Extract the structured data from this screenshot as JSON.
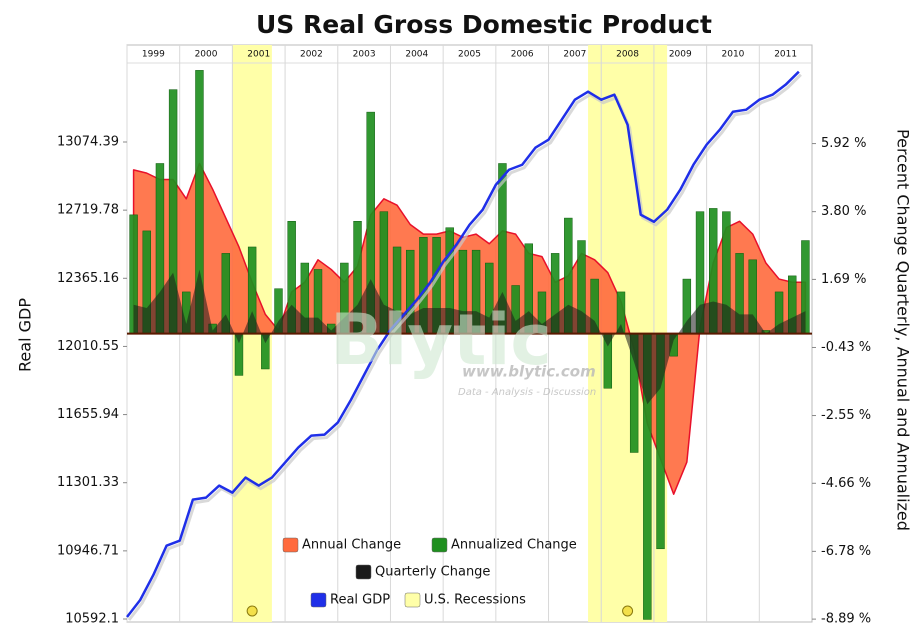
{
  "chart_data": {
    "type": "combo",
    "title": "US Real Gross Domestic Product",
    "y_label": "Real GDP",
    "y2_label": "Percent Change Quarterly, Annual and Annualized",
    "watermark": {
      "logo": "Blytic",
      "url": "www.blytic.com",
      "tagline": "Data - Analysis - Discussion"
    },
    "xlim": [
      1999,
      2012
    ],
    "xticks": [
      1999,
      2000,
      2001,
      2002,
      2003,
      2004,
      2005,
      2006,
      2007,
      2008,
      2009,
      2010,
      2011
    ],
    "x_grid": true,
    "ylim": [
      10576.5,
      13579.2
    ],
    "yticks": [
      10592.1,
      10946.71,
      11301.33,
      11655.94,
      12010.55,
      12365.16,
      12719.78,
      13074.39
    ],
    "y2lim": [
      -8.98,
      8.99
    ],
    "y2ticks": [
      {
        "value": -8.89,
        "label": "-8.89 %"
      },
      {
        "value": -6.78,
        "label": "-6.78 %"
      },
      {
        "value": -4.66,
        "label": "-4.66 %"
      },
      {
        "value": -2.55,
        "label": "-2.55 %"
      },
      {
        "value": -0.43,
        "label": "-0.43 %"
      },
      {
        "value": 1.69,
        "label": "1.69 %"
      },
      {
        "value": 3.8,
        "label": "3.80 %"
      },
      {
        "value": 5.92,
        "label": "5.92 %"
      }
    ],
    "x": [
      1999,
      1999.25,
      1999.5,
      1999.75,
      2000,
      2000.25,
      2000.5,
      2000.75,
      2001,
      2001.25,
      2001.5,
      2001.75,
      2002,
      2002.25,
      2002.5,
      2002.75,
      2003,
      2003.25,
      2003.5,
      2003.75,
      2004,
      2004.25,
      2004.5,
      2004.75,
      2005,
      2005.25,
      2005.5,
      2005.75,
      2006,
      2006.25,
      2006.5,
      2006.75,
      2007,
      2007.25,
      2007.5,
      2007.75,
      2008,
      2008.25,
      2008.5,
      2008.75,
      2009,
      2009.25,
      2009.5,
      2009.75,
      2010,
      2010.25,
      2010.5,
      2010.75,
      2011,
      2011.25,
      2011.5,
      2011.75
    ],
    "recessions": {
      "name": "U.S. Recessions",
      "color": "#ffffa8",
      "spans": [
        [
          2001,
          2001.75
        ],
        [
          2007.75,
          2009.25
        ]
      ]
    },
    "series": [
      {
        "name": "Annual Change",
        "type": "area",
        "color": "#ff6a3d",
        "stroke": "#e8102a",
        "axis": "y2",
        "values": [
          5.1,
          5.0,
          4.8,
          4.8,
          4.2,
          5.3,
          4.5,
          3.6,
          2.7,
          1.6,
          0.6,
          0.1,
          1.3,
          1.6,
          2.3,
          2.0,
          1.6,
          2.1,
          3.7,
          4.2,
          4.0,
          3.4,
          3.1,
          3.1,
          3.2,
          3.0,
          3.1,
          2.8,
          3.2,
          3.1,
          2.5,
          2.4,
          1.6,
          1.8,
          2.5,
          2.3,
          1.9,
          1.0,
          -0.5,
          -2.8,
          -3.9,
          -5.0,
          -4.0,
          0.2,
          2.2,
          3.3,
          3.5,
          3.1,
          2.2,
          1.7,
          1.6,
          1.6
        ]
      },
      {
        "name": "Annualized Change",
        "type": "bar",
        "color": "#1f8f1f",
        "axis": "y2",
        "values": [
          3.7,
          3.2,
          5.3,
          7.6,
          1.3,
          8.2,
          0.3,
          2.5,
          -1.3,
          2.7,
          -1.1,
          1.4,
          3.5,
          2.2,
          2.0,
          0.3,
          2.2,
          3.5,
          6.9,
          3.8,
          2.7,
          2.6,
          3.0,
          3.0,
          3.3,
          2.6,
          2.6,
          2.2,
          5.3,
          1.5,
          2.8,
          1.3,
          2.5,
          3.6,
          2.9,
          1.7,
          -1.7,
          1.3,
          -3.7,
          -8.9,
          -6.7,
          -0.7,
          1.7,
          3.8,
          3.9,
          3.8,
          2.5,
          2.3,
          0.1,
          1.3,
          1.8,
          2.9
        ]
      },
      {
        "name": "Quarterly Change",
        "type": "area",
        "color": "#1a1a1a",
        "axis": "y2",
        "values": [
          0.9,
          0.8,
          1.3,
          1.9,
          0.3,
          2.0,
          0.1,
          0.6,
          -0.3,
          0.7,
          -0.3,
          0.4,
          0.9,
          0.5,
          0.5,
          0.1,
          0.5,
          0.9,
          1.7,
          0.9,
          0.7,
          0.6,
          0.8,
          0.8,
          0.8,
          0.7,
          0.7,
          0.5,
          1.3,
          0.4,
          0.7,
          0.3,
          0.6,
          0.9,
          0.7,
          0.4,
          -0.4,
          0.3,
          -0.9,
          -2.2,
          -1.7,
          -0.2,
          0.4,
          0.9,
          1.0,
          0.9,
          0.6,
          0.6,
          0.0,
          0.3,
          0.5,
          0.7
        ]
      },
      {
        "name": "Real GDP",
        "type": "line",
        "color": "#1f2fe8",
        "values": [
          10602.5,
          10691.0,
          10821.2,
          10973.5,
          10999.5,
          11213.4,
          11223.8,
          11286.3,
          11249.8,
          11328.0,
          11286.3,
          11328.0,
          11406.0,
          11484.2,
          11546.6,
          11551.8,
          11614.3,
          11732.4,
          11862.6,
          11992.8,
          12097.0,
          12175.0,
          12253.1,
          12341.7,
          12451.0,
          12539.5,
          12643.7,
          12721.8,
          12851.9,
          12930.0,
          12956.1,
          13044.6,
          13086.2,
          13190.4,
          13294.5,
          13336.2,
          13294.5,
          13320.6,
          13164.4,
          12695.7,
          12659.3,
          12721.8,
          12826.0,
          12956.1,
          13060.2,
          13138.3,
          13232.0,
          13242.5,
          13294.5,
          13320.6,
          13372.7,
          13440.3
        ]
      }
    ]
  }
}
